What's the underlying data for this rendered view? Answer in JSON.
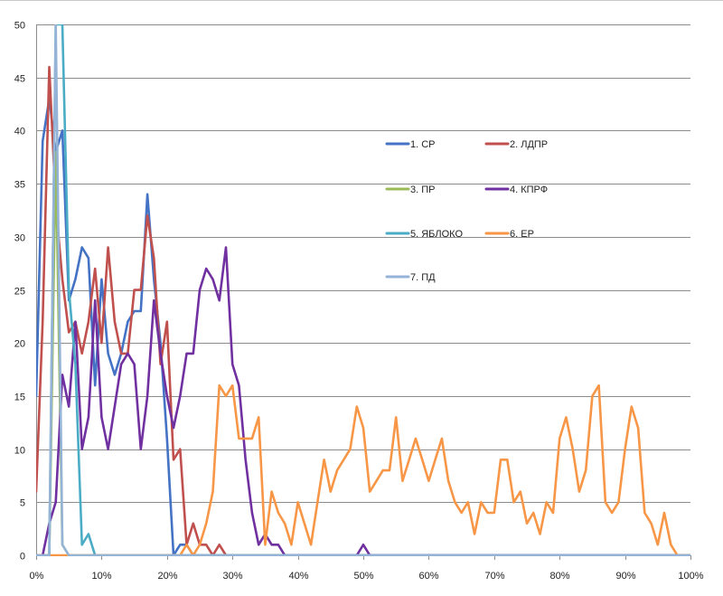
{
  "chart_data": {
    "type": "line",
    "title": "",
    "xlabel": "",
    "ylabel": "",
    "xlim": [
      0,
      100
    ],
    "ylim": [
      0,
      50
    ],
    "grid": true,
    "legend_position": "right",
    "y_ticks": [
      "0",
      "5",
      "10",
      "15",
      "20",
      "25",
      "30",
      "35",
      "40",
      "45",
      "50"
    ],
    "x_ticks": [
      "0%",
      "10%",
      "20%",
      "30%",
      "40%",
      "50%",
      "60%",
      "70%",
      "80%",
      "90%",
      "100%"
    ],
    "series": [
      {
        "name": "1. СР",
        "color": "#4472C4",
        "x": [
          0,
          1,
          2,
          3,
          4,
          5,
          6,
          7,
          8,
          9,
          10,
          11,
          12,
          13,
          14,
          15,
          16,
          17,
          18,
          19,
          20,
          21,
          22,
          23,
          24,
          25,
          100
        ],
        "y": [
          15,
          39,
          43,
          38,
          40,
          24,
          26,
          29,
          28,
          16,
          26,
          19,
          17,
          19,
          22,
          23,
          23,
          34,
          26,
          20,
          11,
          0,
          1,
          1,
          0,
          0,
          0
        ]
      },
      {
        "name": "2. ЛДПР",
        "color": "#C0504D",
        "x": [
          0,
          1,
          2,
          3,
          4,
          5,
          6,
          7,
          8,
          9,
          10,
          11,
          12,
          13,
          14,
          15,
          16,
          17,
          18,
          19,
          20,
          21,
          22,
          23,
          24,
          25,
          26,
          27,
          28,
          29,
          30,
          100
        ],
        "y": [
          6,
          22,
          46,
          33,
          26,
          21,
          22,
          19,
          22,
          27,
          20,
          29,
          22,
          19,
          19,
          25,
          25,
          32,
          28,
          18,
          22,
          9,
          10,
          1,
          3,
          1,
          1,
          0,
          1,
          0,
          0,
          0
        ]
      },
      {
        "name": "3. ПР",
        "color": "#9BBB59",
        "x": [
          0,
          1,
          2,
          3,
          4,
          5,
          6,
          100
        ],
        "y": [
          0,
          0,
          0,
          38,
          1,
          0,
          0,
          0
        ]
      },
      {
        "name": "4. КПРФ",
        "color": "#7030A0",
        "x": [
          0,
          1,
          2,
          3,
          4,
          5,
          6,
          7,
          8,
          9,
          10,
          11,
          12,
          13,
          14,
          15,
          16,
          17,
          18,
          19,
          20,
          21,
          22,
          23,
          24,
          25,
          26,
          27,
          28,
          29,
          30,
          31,
          32,
          33,
          34,
          35,
          36,
          37,
          38,
          39,
          40,
          41,
          42,
          43,
          44,
          45,
          46,
          47,
          48,
          49,
          50,
          51,
          52,
          100
        ],
        "y": [
          0,
          0,
          3,
          5,
          17,
          14,
          22,
          10,
          13,
          24,
          13,
          10,
          14,
          18,
          19,
          18,
          10,
          15,
          24,
          19,
          15,
          12,
          15,
          19,
          19,
          25,
          27,
          26,
          24,
          29,
          18,
          16,
          9,
          4,
          1,
          2,
          1,
          1,
          0,
          0,
          0,
          0,
          0,
          0,
          0,
          0,
          0,
          0,
          0,
          0,
          1,
          0,
          0,
          0
        ]
      },
      {
        "name": "5. ЯБЛОКО",
        "color": "#4BACC6",
        "x": [
          0,
          1,
          2,
          3,
          4,
          5,
          6,
          7,
          8,
          9,
          10,
          100
        ],
        "y": [
          0,
          0,
          0,
          50,
          50,
          25,
          18,
          1,
          2,
          0,
          0,
          0
        ]
      },
      {
        "name": "6. ЕР",
        "color": "#F79646",
        "x": [
          0,
          20,
          21,
          22,
          23,
          24,
          25,
          26,
          27,
          28,
          29,
          30,
          31,
          32,
          33,
          34,
          35,
          36,
          37,
          38,
          39,
          40,
          41,
          42,
          43,
          44,
          45,
          46,
          47,
          48,
          49,
          50,
          51,
          52,
          53,
          54,
          55,
          56,
          57,
          58,
          59,
          60,
          61,
          62,
          63,
          64,
          65,
          66,
          67,
          68,
          69,
          70,
          71,
          72,
          73,
          74,
          75,
          76,
          77,
          78,
          79,
          80,
          81,
          82,
          83,
          84,
          85,
          86,
          87,
          88,
          89,
          90,
          91,
          92,
          93,
          94,
          95,
          96,
          97,
          98,
          100
        ],
        "y": [
          0,
          0,
          0,
          0,
          1,
          0,
          1,
          3,
          6,
          16,
          15,
          16,
          11,
          11,
          11,
          13,
          1,
          6,
          4,
          3,
          1,
          5,
          3,
          1,
          5,
          9,
          6,
          8,
          9,
          10,
          14,
          12,
          6,
          7,
          8,
          8,
          13,
          7,
          9,
          11,
          9,
          7,
          9,
          11,
          7,
          5,
          4,
          5,
          2,
          5,
          4,
          4,
          9,
          9,
          5,
          6,
          3,
          4,
          2,
          5,
          4,
          11,
          13,
          10,
          6,
          8,
          15,
          16,
          5,
          4,
          5,
          10,
          14,
          12,
          4,
          3,
          1,
          4,
          1,
          0,
          0
        ]
      },
      {
        "name": "7. ПД",
        "color": "#95B3D7",
        "x": [
          0,
          1,
          2,
          3,
          4,
          5,
          100
        ],
        "y": [
          0,
          0,
          0,
          50,
          1,
          0,
          0
        ]
      }
    ]
  }
}
